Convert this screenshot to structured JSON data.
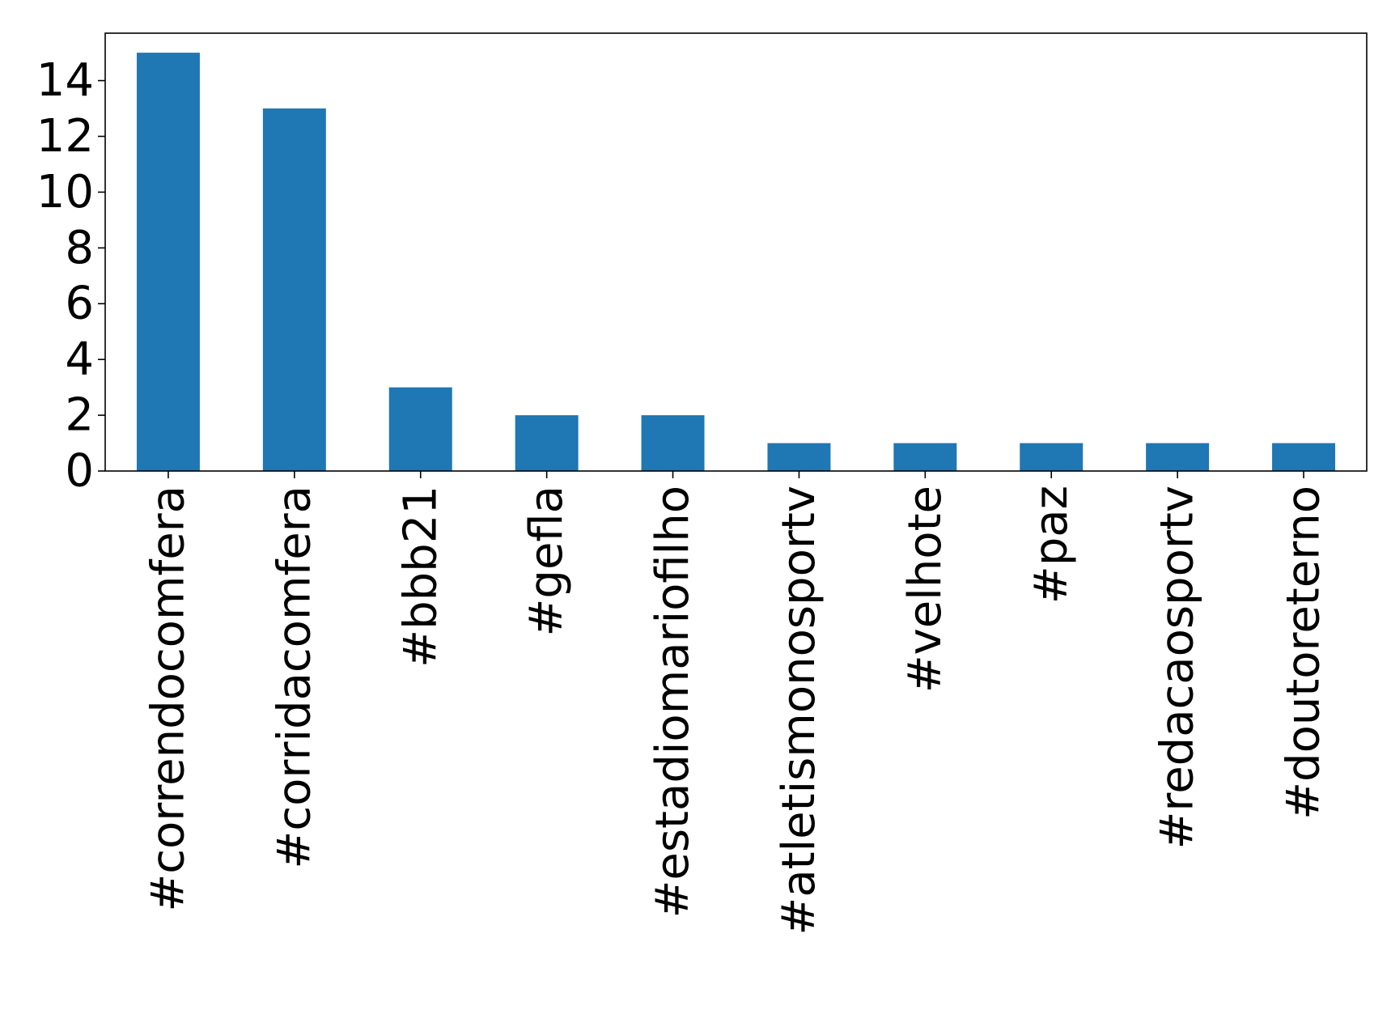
{
  "chart_data": {
    "type": "bar",
    "categories": [
      "#correndocomfera",
      "#corridacomfera",
      "#bbb21",
      "#gefla",
      "#estadiomariofilho",
      "#atletismonosportv",
      "#velhote",
      "#paz",
      "#redacaosportv",
      "#doutoreterno"
    ],
    "series": [
      {
        "values": [
          15,
          13,
          3,
          2,
          2,
          1,
          1,
          1,
          1,
          1
        ]
      }
    ],
    "yticks": [
      0,
      2,
      4,
      6,
      8,
      10,
      12,
      14
    ],
    "ylim": [
      0,
      15.7
    ],
    "bar_color": "#1f77b4",
    "grid": false,
    "legend": "none",
    "title": "",
    "xlabel": "",
    "ylabel": ""
  }
}
